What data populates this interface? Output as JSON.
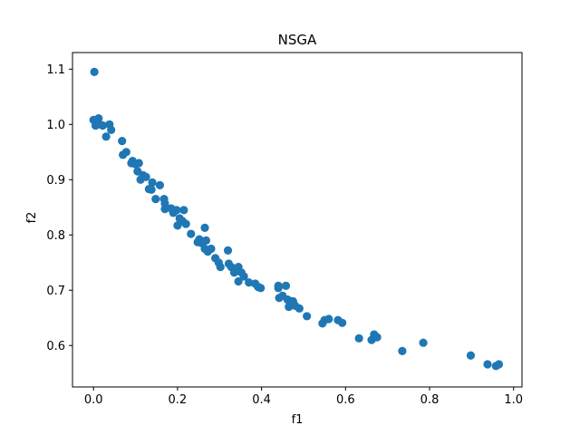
{
  "chart_data": {
    "type": "scatter",
    "title": "NSGA",
    "xlabel": "f1",
    "ylabel": "f2",
    "xlim": [
      -0.05,
      1.02
    ],
    "ylim": [
      0.525,
      1.13
    ],
    "xticks": [
      0.0,
      0.2,
      0.4,
      0.6,
      0.8,
      1.0
    ],
    "xtick_labels": [
      "0.0",
      "0.2",
      "0.4",
      "0.6",
      "0.8",
      "1.0"
    ],
    "yticks": [
      0.6,
      0.7,
      0.8,
      0.9,
      1.0,
      1.1
    ],
    "ytick_labels": [
      "0.6",
      "0.7",
      "0.8",
      "0.9",
      "1.0",
      "1.1"
    ],
    "grid": false,
    "marker_color": "#1f77b4",
    "series": [
      {
        "points": [
          [
            0.002,
            1.095
          ],
          [
            0.0,
            1.008
          ],
          [
            0.012,
            1.011
          ],
          [
            0.005,
            0.998
          ],
          [
            0.015,
            1.0
          ],
          [
            0.022,
            0.998
          ],
          [
            0.038,
            1.0
          ],
          [
            0.042,
            0.99
          ],
          [
            0.03,
            0.978
          ],
          [
            0.068,
            0.97
          ],
          [
            0.07,
            0.945
          ],
          [
            0.078,
            0.95
          ],
          [
            0.09,
            0.93
          ],
          [
            0.093,
            0.934
          ],
          [
            0.1,
            0.928
          ],
          [
            0.108,
            0.93
          ],
          [
            0.105,
            0.915
          ],
          [
            0.112,
            0.9
          ],
          [
            0.118,
            0.908
          ],
          [
            0.125,
            0.905
          ],
          [
            0.132,
            0.883
          ],
          [
            0.138,
            0.882
          ],
          [
            0.14,
            0.895
          ],
          [
            0.148,
            0.865
          ],
          [
            0.158,
            0.89
          ],
          [
            0.168,
            0.865
          ],
          [
            0.17,
            0.857
          ],
          [
            0.17,
            0.847
          ],
          [
            0.185,
            0.848
          ],
          [
            0.19,
            0.84
          ],
          [
            0.198,
            0.845
          ],
          [
            0.2,
            0.817
          ],
          [
            0.205,
            0.83
          ],
          [
            0.212,
            0.825
          ],
          [
            0.215,
            0.845
          ],
          [
            0.22,
            0.82
          ],
          [
            0.232,
            0.802
          ],
          [
            0.248,
            0.787
          ],
          [
            0.252,
            0.792
          ],
          [
            0.258,
            0.785
          ],
          [
            0.265,
            0.813
          ],
          [
            0.265,
            0.775
          ],
          [
            0.268,
            0.79
          ],
          [
            0.272,
            0.77
          ],
          [
            0.28,
            0.775
          ],
          [
            0.29,
            0.758
          ],
          [
            0.298,
            0.75
          ],
          [
            0.302,
            0.742
          ],
          [
            0.32,
            0.772
          ],
          [
            0.322,
            0.748
          ],
          [
            0.328,
            0.742
          ],
          [
            0.335,
            0.732
          ],
          [
            0.345,
            0.742
          ],
          [
            0.345,
            0.716
          ],
          [
            0.352,
            0.732
          ],
          [
            0.358,
            0.725
          ],
          [
            0.37,
            0.714
          ],
          [
            0.385,
            0.712
          ],
          [
            0.392,
            0.706
          ],
          [
            0.398,
            0.704
          ],
          [
            0.44,
            0.708
          ],
          [
            0.44,
            0.704
          ],
          [
            0.442,
            0.686
          ],
          [
            0.45,
            0.69
          ],
          [
            0.458,
            0.708
          ],
          [
            0.462,
            0.683
          ],
          [
            0.465,
            0.67
          ],
          [
            0.47,
            0.68
          ],
          [
            0.475,
            0.68
          ],
          [
            0.48,
            0.672
          ],
          [
            0.49,
            0.667
          ],
          [
            0.508,
            0.653
          ],
          [
            0.545,
            0.64
          ],
          [
            0.55,
            0.646
          ],
          [
            0.56,
            0.648
          ],
          [
            0.582,
            0.646
          ],
          [
            0.592,
            0.641
          ],
          [
            0.632,
            0.613
          ],
          [
            0.662,
            0.61
          ],
          [
            0.668,
            0.62
          ],
          [
            0.675,
            0.615
          ],
          [
            0.735,
            0.59
          ],
          [
            0.785,
            0.605
          ],
          [
            0.898,
            0.582
          ],
          [
            0.938,
            0.566
          ],
          [
            0.958,
            0.563
          ],
          [
            0.965,
            0.566
          ]
        ]
      }
    ]
  }
}
